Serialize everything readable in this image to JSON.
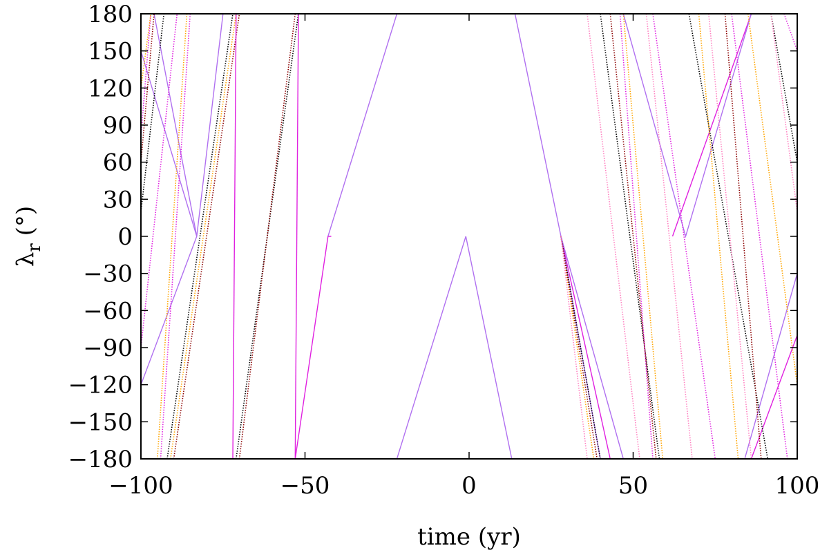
{
  "chart_data": {
    "type": "line",
    "title": "",
    "xlabel": "time (yr)",
    "ylabel": {
      "main": "λ",
      "sub": "r",
      "unit": " (°)"
    },
    "xlim": [
      -100,
      100
    ],
    "ylim": [
      -180,
      180
    ],
    "xticks": [
      -100,
      -50,
      0,
      50,
      100
    ],
    "yticks": [
      180,
      150,
      120,
      90,
      60,
      30,
      0,
      -30,
      -60,
      -90,
      -120,
      -150,
      -180
    ],
    "xtick_labels": [
      "−100",
      "−50",
      "0",
      "50",
      "100"
    ],
    "ytick_labels": [
      "180",
      "150",
      "120",
      "90",
      "60",
      "30",
      "0",
      "−30",
      "−60",
      "−90",
      "−120",
      "−150",
      "−180"
    ],
    "grid": false,
    "legend": "none",
    "colors": {
      "magenta": "#e020e0",
      "violet": "#b070f0",
      "orange": "#ffa500",
      "black": "#000000",
      "darkred": "#8b0000",
      "pink": "#ff80c0"
    },
    "series": [
      {
        "color": "#b070f0",
        "dotted": false,
        "segments": [
          [
            [
              -100,
              -120
            ],
            [
              -83,
              0
            ],
            [
              -75,
              180
            ]
          ],
          [
            [
              -100,
              150
            ],
            [
              -83,
              0
            ]
          ],
          [
            [
              -96,
              180
            ],
            [
              -83,
              0
            ]
          ]
        ]
      },
      {
        "color": "#e020e0",
        "dotted": true,
        "segments": [
          [
            [
              -100,
              80
            ],
            [
              -97,
              180
            ]
          ],
          [
            [
              -100,
              -90
            ],
            [
              -89,
              180
            ]
          ],
          [
            [
              -94,
              -180
            ],
            [
              -85,
              180
            ]
          ]
        ]
      },
      {
        "color": "#ffa500",
        "dotted": true,
        "segments": [
          [
            [
              -100,
              120
            ],
            [
              -97,
              180
            ]
          ],
          [
            [
              -95,
              -180
            ],
            [
              -86,
              180
            ]
          ],
          [
            [
              -91,
              -180
            ],
            [
              -71,
              180
            ]
          ]
        ]
      },
      {
        "color": "#000000",
        "dotted": true,
        "segments": [
          [
            [
              -100,
              20
            ],
            [
              -93,
              180
            ]
          ],
          [
            [
              -92,
              -180
            ],
            [
              -72,
              180
            ]
          ],
          [
            [
              -71,
              -180
            ],
            [
              -52,
              180
            ]
          ]
        ]
      },
      {
        "color": "#8b0000",
        "dotted": true,
        "segments": [
          [
            [
              -100,
              60
            ],
            [
              -96,
              180
            ]
          ],
          [
            [
              -90,
              -180
            ],
            [
              -70,
              180
            ]
          ],
          [
            [
              -70,
              -180
            ],
            [
              -53,
              180
            ]
          ]
        ]
      },
      {
        "color": "#e020e0",
        "dotted": false,
        "segments": [
          [
            [
              -72,
              -180
            ],
            [
              -71,
              180
            ]
          ],
          [
            [
              -53,
              -180
            ],
            [
              -52,
              180
            ]
          ],
          [
            [
              -53,
              -180
            ],
            [
              -43,
              0
            ],
            [
              -42,
              0
            ]
          ]
        ]
      },
      {
        "color": "#b070f0",
        "dotted": false,
        "segments": [
          [
            [
              -43,
              0
            ],
            [
              -22,
              180
            ]
          ],
          [
            [
              -22,
              -180
            ],
            [
              -1,
              0
            ],
            [
              13,
              -180
            ]
          ],
          [
            [
              14,
              180
            ],
            [
              28,
              0
            ],
            [
              40,
              -180
            ]
          ]
        ]
      },
      {
        "color": "#e020e0",
        "dotted": false,
        "segments": [
          [
            [
              28,
              0
            ],
            [
              43,
              -180
            ]
          ],
          [
            [
              62,
              0
            ],
            [
              86,
              180
            ]
          ],
          [
            [
              86,
              -180
            ],
            [
              100,
              -80
            ]
          ]
        ]
      },
      {
        "color": "#b070f0",
        "dotted": false,
        "segments": [
          [
            [
              28,
              0
            ],
            [
              47,
              -180
            ]
          ],
          [
            [
              47,
              180
            ],
            [
              66,
              0
            ],
            [
              86,
              180
            ]
          ],
          [
            [
              84,
              -180
            ],
            [
              100,
              -30
            ]
          ]
        ]
      },
      {
        "color": "#000000",
        "dotted": true,
        "segments": [
          [
            [
              28,
              0
            ],
            [
              40,
              -180
            ]
          ],
          [
            [
              40,
              180
            ],
            [
              58,
              -180
            ]
          ],
          [
            [
              67,
              180
            ],
            [
              91,
              -180
            ]
          ],
          [
            [
              92,
              180
            ],
            [
              100,
              60
            ]
          ]
        ]
      },
      {
        "color": "#ffa500",
        "dotted": true,
        "segments": [
          [
            [
              28,
              0
            ],
            [
              38,
              -180
            ]
          ],
          [
            [
              47,
              180
            ],
            [
              59,
              -180
            ]
          ],
          [
            [
              70,
              180
            ],
            [
              82,
              -180
            ]
          ],
          [
            [
              85,
              180
            ],
            [
              100,
              -120
            ]
          ]
        ]
      },
      {
        "color": "#8b0000",
        "dotted": true,
        "segments": [
          [
            [
              28,
              0
            ],
            [
              39,
              -180
            ]
          ],
          [
            [
              43,
              180
            ],
            [
              57,
              -180
            ]
          ],
          [
            [
              78,
              180
            ],
            [
              89,
              -180
            ]
          ]
        ]
      },
      {
        "color": "#ff80c0",
        "dotted": true,
        "segments": [
          [
            [
              28,
              0
            ],
            [
              36,
              -180
            ]
          ],
          [
            [
              36,
              180
            ],
            [
              52,
              -180
            ]
          ],
          [
            [
              54,
              180
            ],
            [
              68,
              -180
            ]
          ],
          [
            [
              73,
              180
            ],
            [
              86,
              -180
            ]
          ],
          [
            [
              92,
              180
            ],
            [
              100,
              20
            ]
          ]
        ]
      },
      {
        "color": "#e020e0",
        "dotted": true,
        "segments": [
          [
            [
              46,
              180
            ],
            [
              56,
              -180
            ]
          ],
          [
            [
              56,
              180
            ],
            [
              75,
              -180
            ]
          ],
          [
            [
              80,
              180
            ],
            [
              97,
              -180
            ]
          ],
          [
            [
              96,
              180
            ],
            [
              100,
              150
            ]
          ]
        ]
      }
    ]
  }
}
